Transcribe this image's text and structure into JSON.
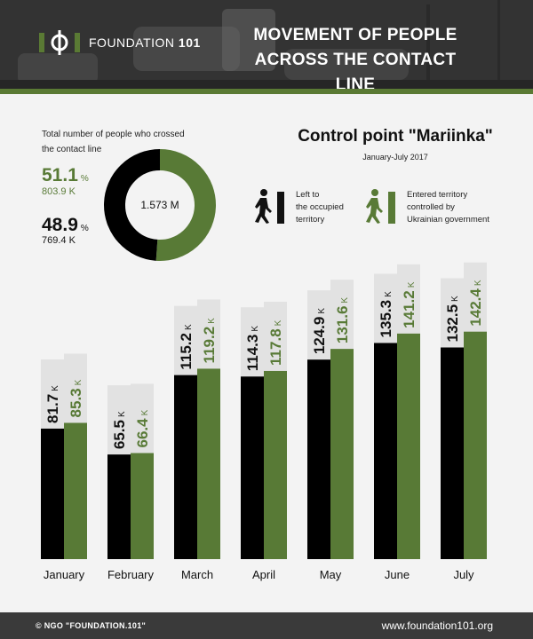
{
  "header": {
    "logo_text": "FOUNDATION",
    "logo_number": "101",
    "title_line1": "MOVEMENT OF PEOPLE",
    "title_line2": "ACROSS THE CONTACT LINE"
  },
  "summary": {
    "label_line1": "Total number of people who crossed",
    "label_line2": "the contact line",
    "entered_pct": "51.1",
    "entered_abs": "803.9 K",
    "left_pct": "48.9",
    "left_abs": "769.4 K",
    "pct_sign": "%",
    "total": "1.573 M",
    "entered_share": 51.1,
    "left_share": 48.9
  },
  "control_point": {
    "title": "Control point \"Mariinka\"",
    "period": "January-July 2017"
  },
  "legend": {
    "left_line1": "Left to",
    "left_line2": "the occupied",
    "left_line3": "territory",
    "entered_line1": "Entered territory",
    "entered_line2": "controlled by",
    "entered_line3": "Ukrainian government"
  },
  "colors": {
    "left": "#000000",
    "entered": "#587a36",
    "label_bg": "#e2e2e2"
  },
  "chart_data": {
    "type": "bar",
    "categories": [
      "January",
      "February",
      "March",
      "April",
      "May",
      "June",
      "July"
    ],
    "unit": "K",
    "series": [
      {
        "name": "Left to the occupied territory",
        "values": [
          81.7,
          65.5,
          115.2,
          114.3,
          124.9,
          135.3,
          132.5
        ]
      },
      {
        "name": "Entered territory controlled by Ukrainian government",
        "values": [
          85.3,
          66.4,
          119.2,
          117.8,
          131.6,
          141.2,
          142.4
        ]
      }
    ]
  },
  "footer": {
    "copyright": "© NGO \"FOUNDATION.101\"",
    "url": "www.foundation101.org"
  }
}
